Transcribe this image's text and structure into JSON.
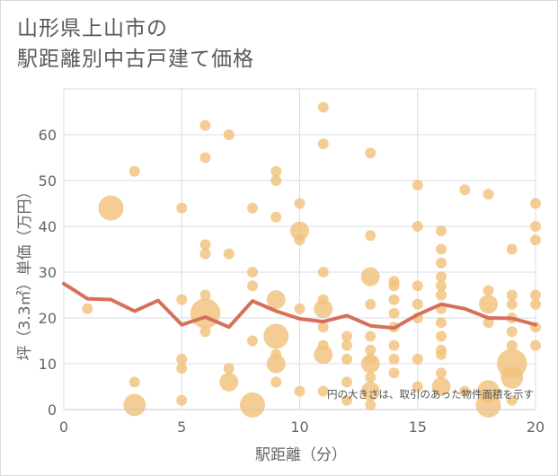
{
  "title_line1": "山形県上山市の",
  "title_line2": "駅距離別中古戸建て価格",
  "chart_data": {
    "type": "scatter",
    "title": "山形県上山市の駅距離別中古戸建て価格",
    "xlabel": "駅距離（分）",
    "ylabel": "坪（3.3㎡）単価（万円）",
    "xlim": [
      0,
      20
    ],
    "ylim": [
      0,
      70
    ],
    "xticks": [
      0,
      5,
      10,
      15,
      20
    ],
    "yticks": [
      0,
      10,
      20,
      30,
      40,
      50,
      60
    ],
    "grid": true,
    "note": "円の大きさは、取引のあった物件面積を示す",
    "colors": {
      "bubble": "#f2c27e",
      "line": "#d6705a",
      "grid": "#d6dde8",
      "axis_text": "#666666"
    },
    "bubbles": [
      {
        "x": 1,
        "y": 22,
        "s": 1
      },
      {
        "x": 2,
        "y": 44,
        "s": 4
      },
      {
        "x": 3,
        "y": 52,
        "s": 1
      },
      {
        "x": 3,
        "y": 6,
        "s": 1
      },
      {
        "x": 3,
        "y": 1,
        "s": 3
      },
      {
        "x": 5,
        "y": 44,
        "s": 1
      },
      {
        "x": 5,
        "y": 24,
        "s": 1
      },
      {
        "x": 5,
        "y": 11,
        "s": 1
      },
      {
        "x": 5,
        "y": 9,
        "s": 1
      },
      {
        "x": 5,
        "y": 2,
        "s": 1
      },
      {
        "x": 6,
        "y": 62,
        "s": 1
      },
      {
        "x": 6,
        "y": 55,
        "s": 1
      },
      {
        "x": 6,
        "y": 36,
        "s": 1
      },
      {
        "x": 6,
        "y": 34,
        "s": 1
      },
      {
        "x": 6,
        "y": 25,
        "s": 1
      },
      {
        "x": 6,
        "y": 21,
        "s": 6
      },
      {
        "x": 6,
        "y": 17,
        "s": 1
      },
      {
        "x": 7,
        "y": 60,
        "s": 1
      },
      {
        "x": 7,
        "y": 34,
        "s": 1
      },
      {
        "x": 7,
        "y": 9,
        "s": 1
      },
      {
        "x": 7,
        "y": 6,
        "s": 2
      },
      {
        "x": 8,
        "y": 44,
        "s": 1
      },
      {
        "x": 8,
        "y": 30,
        "s": 1
      },
      {
        "x": 8,
        "y": 27,
        "s": 1
      },
      {
        "x": 8,
        "y": 15,
        "s": 1
      },
      {
        "x": 8,
        "y": 1,
        "s": 4
      },
      {
        "x": 9,
        "y": 52,
        "s": 1
      },
      {
        "x": 9,
        "y": 50,
        "s": 1
      },
      {
        "x": 9,
        "y": 42,
        "s": 1
      },
      {
        "x": 9,
        "y": 24,
        "s": 2
      },
      {
        "x": 9,
        "y": 16,
        "s": 4
      },
      {
        "x": 9,
        "y": 12,
        "s": 1
      },
      {
        "x": 9,
        "y": 10,
        "s": 2
      },
      {
        "x": 9,
        "y": 6,
        "s": 1
      },
      {
        "x": 10,
        "y": 45,
        "s": 1
      },
      {
        "x": 10,
        "y": 39,
        "s": 2
      },
      {
        "x": 10,
        "y": 37,
        "s": 1
      },
      {
        "x": 10,
        "y": 22,
        "s": 1
      },
      {
        "x": 10,
        "y": 4,
        "s": 1
      },
      {
        "x": 11,
        "y": 66,
        "s": 1
      },
      {
        "x": 11,
        "y": 58,
        "s": 1
      },
      {
        "x": 11,
        "y": 30,
        "s": 1
      },
      {
        "x": 11,
        "y": 24,
        "s": 1
      },
      {
        "x": 11,
        "y": 22,
        "s": 2
      },
      {
        "x": 11,
        "y": 18,
        "s": 1
      },
      {
        "x": 11,
        "y": 14,
        "s": 1
      },
      {
        "x": 11,
        "y": 12,
        "s": 2
      },
      {
        "x": 11,
        "y": 4,
        "s": 1
      },
      {
        "x": 12,
        "y": 16,
        "s": 1
      },
      {
        "x": 12,
        "y": 14,
        "s": 1
      },
      {
        "x": 12,
        "y": 11,
        "s": 1
      },
      {
        "x": 12,
        "y": 6,
        "s": 1
      },
      {
        "x": 12,
        "y": 2,
        "s": 1
      },
      {
        "x": 13,
        "y": 56,
        "s": 1
      },
      {
        "x": 13,
        "y": 38,
        "s": 1
      },
      {
        "x": 13,
        "y": 29,
        "s": 2
      },
      {
        "x": 13,
        "y": 23,
        "s": 1
      },
      {
        "x": 13,
        "y": 16,
        "s": 1
      },
      {
        "x": 13,
        "y": 13,
        "s": 1
      },
      {
        "x": 13,
        "y": 11,
        "s": 1
      },
      {
        "x": 13,
        "y": 10,
        "s": 2
      },
      {
        "x": 13,
        "y": 7,
        "s": 1
      },
      {
        "x": 13,
        "y": 4,
        "s": 2
      },
      {
        "x": 13,
        "y": 1,
        "s": 1
      },
      {
        "x": 14,
        "y": 28,
        "s": 1
      },
      {
        "x": 14,
        "y": 27,
        "s": 1
      },
      {
        "x": 14,
        "y": 24,
        "s": 1
      },
      {
        "x": 14,
        "y": 21,
        "s": 1
      },
      {
        "x": 14,
        "y": 18,
        "s": 1
      },
      {
        "x": 14,
        "y": 14,
        "s": 1
      },
      {
        "x": 14,
        "y": 11,
        "s": 1
      },
      {
        "x": 14,
        "y": 8,
        "s": 1
      },
      {
        "x": 15,
        "y": 49,
        "s": 1
      },
      {
        "x": 15,
        "y": 40,
        "s": 1
      },
      {
        "x": 15,
        "y": 27,
        "s": 1
      },
      {
        "x": 15,
        "y": 23,
        "s": 1
      },
      {
        "x": 15,
        "y": 20,
        "s": 1
      },
      {
        "x": 15,
        "y": 11,
        "s": 1
      },
      {
        "x": 15,
        "y": 5,
        "s": 1
      },
      {
        "x": 16,
        "y": 39,
        "s": 1
      },
      {
        "x": 16,
        "y": 35,
        "s": 1
      },
      {
        "x": 16,
        "y": 32,
        "s": 1
      },
      {
        "x": 16,
        "y": 29,
        "s": 1
      },
      {
        "x": 16,
        "y": 27,
        "s": 1
      },
      {
        "x": 16,
        "y": 25,
        "s": 1
      },
      {
        "x": 16,
        "y": 22,
        "s": 1
      },
      {
        "x": 16,
        "y": 19,
        "s": 1
      },
      {
        "x": 16,
        "y": 16,
        "s": 1
      },
      {
        "x": 16,
        "y": 13,
        "s": 1
      },
      {
        "x": 16,
        "y": 12,
        "s": 1
      },
      {
        "x": 16,
        "y": 8,
        "s": 1
      },
      {
        "x": 16,
        "y": 5,
        "s": 2
      },
      {
        "x": 17,
        "y": 48,
        "s": 1
      },
      {
        "x": 17,
        "y": 4,
        "s": 1
      },
      {
        "x": 18,
        "y": 47,
        "s": 1
      },
      {
        "x": 18,
        "y": 26,
        "s": 1
      },
      {
        "x": 18,
        "y": 23,
        "s": 2
      },
      {
        "x": 18,
        "y": 19,
        "s": 1
      },
      {
        "x": 18,
        "y": 4,
        "s": 3
      },
      {
        "x": 18,
        "y": 1,
        "s": 4
      },
      {
        "x": 19,
        "y": 35,
        "s": 1
      },
      {
        "x": 19,
        "y": 25,
        "s": 1
      },
      {
        "x": 19,
        "y": 23,
        "s": 1
      },
      {
        "x": 19,
        "y": 20,
        "s": 1
      },
      {
        "x": 19,
        "y": 17,
        "s": 1
      },
      {
        "x": 19,
        "y": 14,
        "s": 1
      },
      {
        "x": 19,
        "y": 10,
        "s": 6
      },
      {
        "x": 19,
        "y": 7,
        "s": 3
      },
      {
        "x": 19,
        "y": 2,
        "s": 1
      },
      {
        "x": 20,
        "y": 45,
        "s": 1
      },
      {
        "x": 20,
        "y": 40,
        "s": 1
      },
      {
        "x": 20,
        "y": 37,
        "s": 1
      },
      {
        "x": 20,
        "y": 25,
        "s": 1
      },
      {
        "x": 20,
        "y": 23,
        "s": 1
      },
      {
        "x": 20,
        "y": 18,
        "s": 1
      },
      {
        "x": 20,
        "y": 14,
        "s": 1
      }
    ],
    "line": {
      "x": [
        0,
        1,
        2,
        3,
        4,
        5,
        6,
        7,
        8,
        9,
        10,
        11,
        12,
        13,
        14,
        15,
        16,
        17,
        18,
        19,
        20
      ],
      "y": [
        27.5,
        24.2,
        24.0,
        21.5,
        23.8,
        18.5,
        20.2,
        18.0,
        23.7,
        21.5,
        19.8,
        19.2,
        20.5,
        18.3,
        17.8,
        20.7,
        23.0,
        22.0,
        20.0,
        19.9,
        18.5
      ]
    }
  }
}
